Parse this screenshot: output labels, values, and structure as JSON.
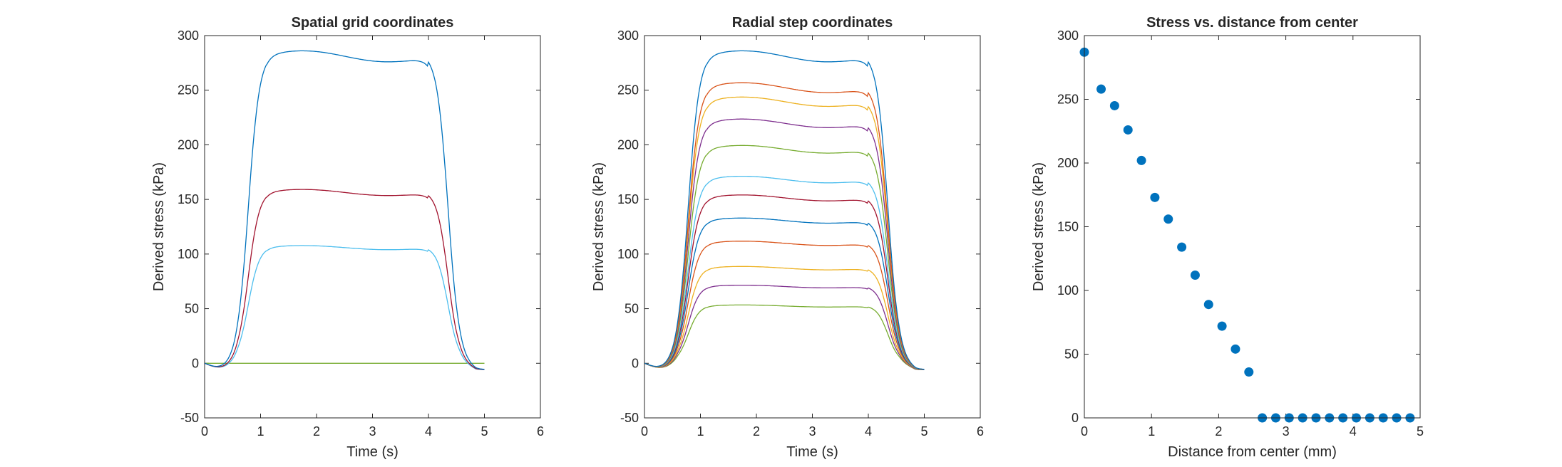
{
  "chart_data": [
    {
      "type": "line",
      "title": "Spatial grid coordinates",
      "xlabel": "Time (s)",
      "ylabel": "Derived stress (kPa)",
      "xlim": [
        0,
        6
      ],
      "ylim": [
        -50,
        300
      ],
      "xticks": [
        "0",
        "1",
        "2",
        "3",
        "4",
        "5",
        "6"
      ],
      "yticks": [
        "-50",
        "0",
        "50",
        "100",
        "150",
        "200",
        "250",
        "300"
      ],
      "grid": false,
      "time_end": 5,
      "series": [
        {
          "plateau": 0,
          "color": "#77AC30"
        },
        {
          "plateau": 107,
          "color": "#4DBEEE"
        },
        {
          "plateau": 158,
          "color": "#A2142F"
        },
        {
          "plateau": 284,
          "color": "#0072BD"
        }
      ]
    },
    {
      "type": "line",
      "title": "Radial step coordinates",
      "xlabel": "Time (s)",
      "ylabel": "Derived stress (kPa)",
      "xlim": [
        0,
        6
      ],
      "ylim": [
        -50,
        300
      ],
      "xticks": [
        "0",
        "1",
        "2",
        "3",
        "4",
        "5",
        "6"
      ],
      "yticks": [
        "-50",
        "0",
        "50",
        "100",
        "150",
        "200",
        "250",
        "300"
      ],
      "grid": false,
      "time_end": 5,
      "series": [
        {
          "plateau": 53,
          "color": "#77AC30"
        },
        {
          "plateau": 71,
          "color": "#7E2F8E"
        },
        {
          "plateau": 88,
          "color": "#EDB120"
        },
        {
          "plateau": 111,
          "color": "#D95319"
        },
        {
          "plateau": 132,
          "color": "#0072BD"
        },
        {
          "plateau": 153,
          "color": "#A2142F"
        },
        {
          "plateau": 170,
          "color": "#4DBEEE"
        },
        {
          "plateau": 198,
          "color": "#77AC30"
        },
        {
          "plateau": 222,
          "color": "#7E2F8E"
        },
        {
          "plateau": 242,
          "color": "#EDB120"
        },
        {
          "plateau": 255,
          "color": "#D95319"
        },
        {
          "plateau": 284,
          "color": "#0072BD"
        }
      ]
    },
    {
      "type": "scatter",
      "title": "Stress vs. distance from center",
      "xlabel": "Distance from center (mm)",
      "ylabel": "Derived stress (kPa)",
      "xlim": [
        0,
        5
      ],
      "ylim": [
        0,
        300
      ],
      "xticks": [
        "0",
        "1",
        "2",
        "3",
        "4",
        "5"
      ],
      "yticks": [
        "0",
        "50",
        "100",
        "150",
        "200",
        "250",
        "300"
      ],
      "grid": false,
      "color": "#0072BD",
      "x": [
        0,
        0.25,
        0.45,
        0.65,
        0.85,
        1.05,
        1.25,
        1.45,
        1.65,
        1.85,
        2.05,
        2.25,
        2.45,
        2.65,
        2.85,
        3.05,
        3.25,
        3.45,
        3.65,
        3.85,
        4.05,
        4.25,
        4.45,
        4.65,
        4.85
      ],
      "y": [
        287,
        258,
        245,
        226,
        202,
        173,
        156,
        134,
        112,
        89,
        72,
        54,
        36,
        0,
        0,
        0,
        0,
        0,
        0,
        0,
        0,
        0,
        0,
        0,
        0
      ]
    }
  ]
}
